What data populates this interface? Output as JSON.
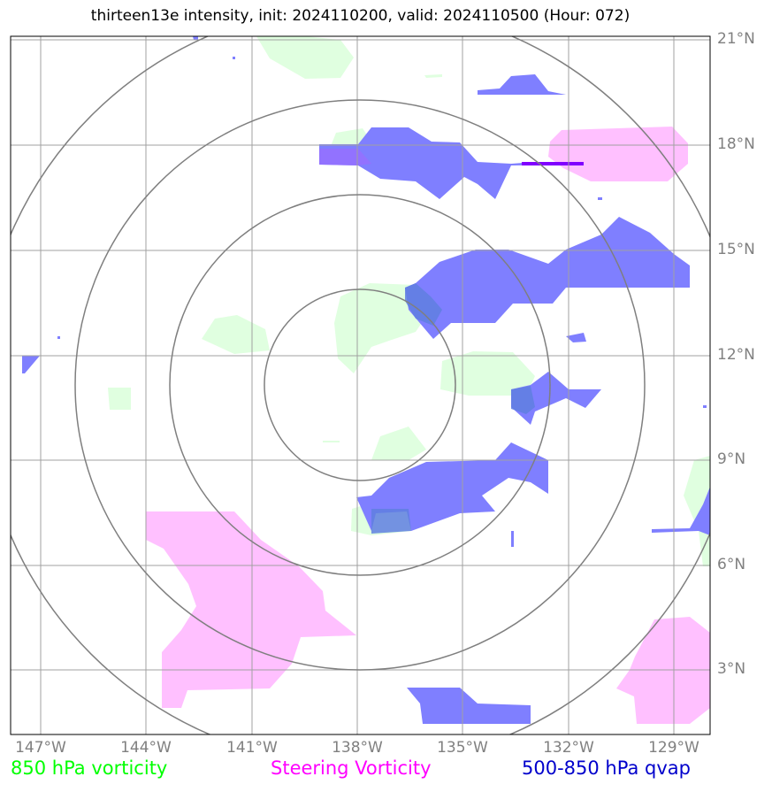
{
  "title": "thirteen13e intensity, init: 2024110200, valid: 2024110500 (Hour: 072)",
  "lat_labels": [
    "21°N",
    "18°N",
    "15°N",
    "12°N",
    "9°N",
    "6°N",
    "3°N"
  ],
  "lon_labels": [
    "147°W",
    "144°W",
    "141°W",
    "138°W",
    "135°W",
    "132°W",
    "129°W"
  ],
  "legend": {
    "vorticity_label": "850 hPa vorticity",
    "steering_label": "Steering Vorticity",
    "qvap_label": "500-850 hPa qvap"
  },
  "colors": {
    "vorticity_text": "#00ff00",
    "steering_text": "#ff00ff",
    "qvap_text": "#0000cc",
    "vorticity_fill": "#e0ffe0",
    "steering_fill": "#ffc0ff",
    "qvap_fill": "#7f7fff",
    "grid": "#a0a0a0",
    "rings": "#7f7f7f"
  },
  "map": {
    "lon_range": [
      "147.8°W",
      "127.8°W"
    ],
    "lat_range": [
      "1.8°N",
      "21.1°N"
    ],
    "center": {
      "lat": "11.2°N",
      "lon": "138.1°W"
    },
    "rings_deg": [
      2.7,
      5.5,
      8.25,
      11.0
    ]
  }
}
